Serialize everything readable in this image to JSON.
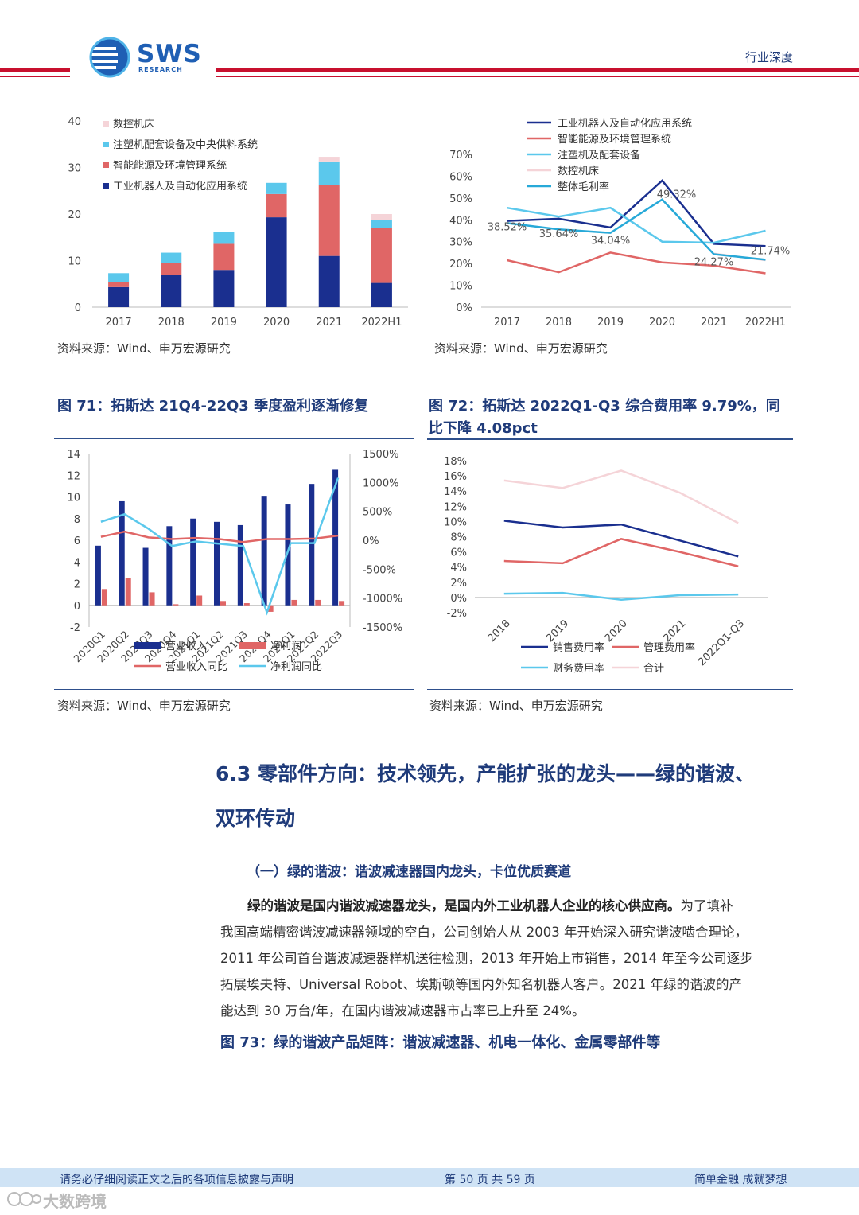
{
  "header": {
    "logo_text": "SWS",
    "logo_sub": "RESEARCH",
    "doc_type": "行业深度"
  },
  "charts_top": {
    "source_left": "资料来源：Wind、申万宏源研究",
    "source_right": "资料来源：Wind、申万宏源研究"
  },
  "fig71": {
    "title": "图 71：拓斯达 21Q4-22Q3 季度盈利逐渐修复",
    "source": "资料来源：Wind、申万宏源研究"
  },
  "fig72": {
    "title_line1": "图 72：拓斯达 2022Q1-Q3 综合费用率 9.79%，同",
    "title_line2": "比下降 4.08pct",
    "source": "资料来源：Wind、申万宏源研究"
  },
  "section": {
    "title_line1": "6.3 零部件方向：技术领先，产能扩张的龙头——绿的谐波、",
    "title_line2": "双环传动",
    "subtitle": "（一）绿的谐波：谐波减速器国内龙头，卡位优质赛道",
    "para_bold": "绿的谐波是国内谐波减速器龙头，是国内外工业机器人企业的核心供应商。",
    "para_rest1": "为了填补",
    "para_line2": "我国高端精密谐波减速器领域的空白，公司创始人从 2003 年开始深入研究谐波啮合理论，",
    "para_line3": "2011 年公司首台谐波减速器样机送往检测，2013 年开始上市销售，2014 年至今公司逐步",
    "para_line4": "拓展埃夫特、Universal Robot、埃斯顿等国内外知名机器人客户。2021 年绿的谐波的产",
    "para_line5": "能达到 30 万台/年，在国内谐波减速器市占率已上升至 24%。",
    "fig73_title": "图 73：绿的谐波产品矩阵：谐波减速器、机电一体化、金属零部件等"
  },
  "footer": {
    "left": "请务必仔细阅读正文之后的各项信息披露与声明",
    "center": "第 50 页 共 59 页",
    "right": "简单金融 成就梦想",
    "watermark": "大数跨境"
  },
  "colors": {
    "navy": "#1a2f8f",
    "red": "#e06666",
    "lightblue": "#5bc8ec",
    "pink": "#f5d4d8",
    "teal": "#27a9d8"
  },
  "chart_data": [
    {
      "type": "bar",
      "stacked": true,
      "categories": [
        "2017",
        "2018",
        "2019",
        "2020",
        "2021",
        "2022H1"
      ],
      "yticks": [
        "0",
        "10",
        "20",
        "30",
        "40"
      ],
      "ylim": [
        0,
        40
      ],
      "series": [
        {
          "name": "工业机器人及自动化应用系统",
          "values": [
            4.3,
            6.9,
            8.0,
            19.3,
            11.0,
            5.2
          ]
        },
        {
          "name": "智能能源及环境管理系统",
          "values": [
            1.0,
            2.6,
            5.6,
            5.0,
            15.3,
            11.8
          ]
        },
        {
          "name": "注塑机配套设备及中央供料系统",
          "values": [
            2.0,
            2.2,
            2.6,
            2.4,
            5.0,
            1.7
          ]
        },
        {
          "name": "数控机床",
          "values": [
            0.0,
            0.0,
            0.0,
            0.0,
            1.0,
            1.3
          ]
        }
      ]
    },
    {
      "type": "line",
      "categories": [
        "2017",
        "2018",
        "2019",
        "2020",
        "2021",
        "2022H1"
      ],
      "yticks": [
        "0%",
        "10%",
        "20%",
        "30%",
        "40%",
        "50%",
        "60%",
        "70%"
      ],
      "ylim": [
        0,
        70
      ],
      "series": [
        {
          "name": "工业机器人及自动化应用系统",
          "values": [
            39.5,
            40.5,
            36.5,
            58.0,
            29.0,
            28.0
          ]
        },
        {
          "name": "智能能源及环境管理系统",
          "values": [
            21.5,
            16.0,
            25.0,
            20.5,
            19.0,
            15.5
          ]
        },
        {
          "name": "注塑机及配套设备",
          "values": [
            45.5,
            41.5,
            45.5,
            30.0,
            29.5,
            35.0
          ]
        },
        {
          "name": "数控机床",
          "values": [
            null,
            null,
            null,
            null,
            24.5,
            21.5
          ]
        },
        {
          "name": "整体毛利率",
          "values": [
            38.52,
            35.64,
            34.04,
            49.32,
            24.27,
            21.74
          ]
        }
      ],
      "labels": [
        "38.52%",
        "35.64%",
        "34.04%",
        "49.32%",
        "24.27%",
        "21.74%"
      ]
    },
    {
      "type": "bar+line",
      "title": "图 71：拓斯达 21Q4-22Q3 季度盈利逐渐修复",
      "categories": [
        "2020Q1",
        "2020Q2",
        "2020Q3",
        "2020Q4",
        "2021Q1",
        "2021Q2",
        "2021Q3",
        "2021Q4",
        "2022Q1",
        "2022Q2",
        "2022Q3"
      ],
      "yticks_left": [
        "-2",
        "0",
        "2",
        "4",
        "6",
        "8",
        "10",
        "12",
        "14"
      ],
      "yticks_right": [
        "-1500%",
        "-1000%",
        "-500%",
        "0%",
        "500%",
        "1000%",
        "1500%"
      ],
      "ylim_left": [
        -2,
        14
      ],
      "ylim_right": [
        -1500,
        1500
      ],
      "series": [
        {
          "name": "营业收入",
          "axis": "left",
          "values": [
            5.5,
            9.6,
            5.3,
            7.3,
            8.0,
            7.7,
            7.4,
            10.1,
            9.3,
            11.2,
            12.5
          ]
        },
        {
          "name": "净利润",
          "axis": "left",
          "values": [
            1.5,
            2.5,
            1.2,
            0.1,
            0.9,
            0.4,
            0.2,
            -0.6,
            0.5,
            0.5,
            0.4
          ]
        },
        {
          "name": "营业收入同比",
          "axis": "right",
          "values": [
            60,
            150,
            50,
            20,
            40,
            20,
            -30,
            20,
            20,
            30,
            80
          ]
        },
        {
          "name": "净利润同比",
          "axis": "right",
          "values": [
            320,
            450,
            200,
            -100,
            -20,
            -60,
            -100,
            -1250,
            -50,
            -50,
            1080
          ]
        }
      ]
    },
    {
      "type": "line",
      "title": "图 72：拓斯达 2022Q1-Q3 综合费用率 9.79%，同比下降 4.08pct",
      "categories": [
        "2018",
        "2019",
        "2020",
        "2021",
        "2022Q1-Q3"
      ],
      "yticks": [
        "-2%",
        "0%",
        "2%",
        "4%",
        "6%",
        "8%",
        "10%",
        "12%",
        "14%",
        "16%",
        "18%"
      ],
      "ylim": [
        -2,
        18
      ],
      "series": [
        {
          "name": "销售费用率",
          "values": [
            10.1,
            9.2,
            9.6,
            7.5,
            5.4
          ]
        },
        {
          "name": "管理费用率",
          "values": [
            4.8,
            4.5,
            7.7,
            6.0,
            4.1
          ]
        },
        {
          "name": "财务费用率",
          "values": [
            0.5,
            0.6,
            -0.3,
            0.3,
            0.4
          ]
        },
        {
          "name": "合计",
          "values": [
            15.4,
            14.4,
            16.7,
            13.8,
            9.79
          ]
        }
      ]
    }
  ]
}
